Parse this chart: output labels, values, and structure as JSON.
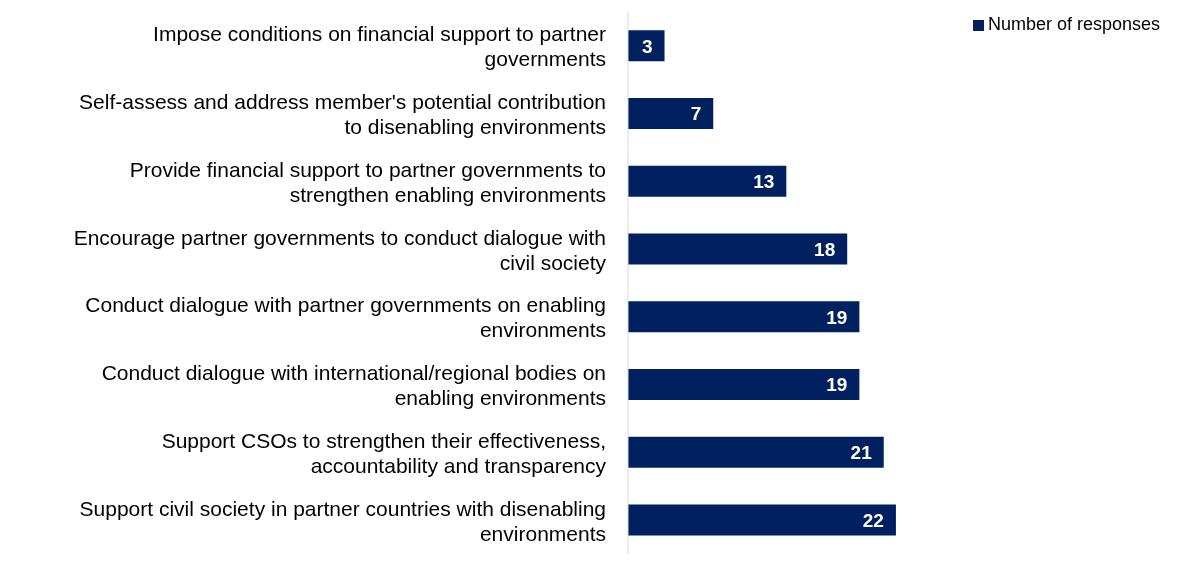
{
  "chart_data": {
    "type": "bar",
    "orientation": "horizontal",
    "categories": [
      "Impose conditions on financial support to partner governments",
      "Self-assess and address member's potential contribution to disenabling environments",
      "Provide financial support to partner governments to strengthen enabling environments",
      "Encourage partner governments to conduct dialogue with civil society",
      "Conduct dialogue with partner governments on enabling environments",
      "Conduct dialogue with international/regional bodies on enabling environments",
      "Support CSOs to strengthen their effectiveness, accountability and transparency",
      "Support civil society in partner countries with disenabling environments"
    ],
    "series": [
      {
        "name": "Number of responses",
        "color": "#002060",
        "values": [
          3,
          7,
          13,
          18,
          19,
          19,
          21,
          22
        ]
      }
    ],
    "data_labels": true,
    "legend": "top right"
  }
}
